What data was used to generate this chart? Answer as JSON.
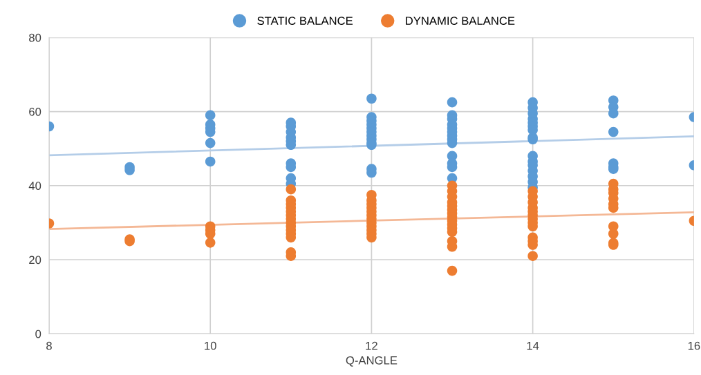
{
  "chart_data": {
    "type": "scatter",
    "xlabel": "Q-ANGLE",
    "xlim": [
      8,
      16
    ],
    "xticks": [
      8,
      10,
      12,
      14,
      16
    ],
    "ylim": [
      0,
      80
    ],
    "yticks": [
      0,
      20,
      40,
      60,
      80
    ],
    "grid": true,
    "legend": "top",
    "marker": "circle",
    "series": [
      {
        "name": "STATIC BALANCE",
        "color": "#5b9bd5",
        "x": [
          8,
          9,
          9,
          10,
          10,
          10,
          10,
          10,
          10,
          11,
          11,
          11,
          11,
          11,
          11,
          11,
          11,
          11,
          11,
          12,
          12,
          12,
          12,
          12,
          12,
          12,
          12,
          12,
          12,
          12,
          12,
          13,
          13,
          13,
          13,
          13,
          13,
          13,
          13,
          13,
          13,
          13,
          13,
          13,
          14,
          14,
          14,
          14,
          14,
          14,
          14,
          14,
          14,
          14,
          14,
          14,
          14,
          14,
          14,
          14,
          15,
          15,
          15,
          15,
          15,
          15,
          15,
          16,
          16
        ],
        "values": [
          56,
          45,
          44.2,
          59,
          56.5,
          55.5,
          54.5,
          51.5,
          46.5,
          57,
          56,
          54.5,
          53,
          52,
          51,
          46,
          45,
          42,
          40.5,
          63.5,
          58.5,
          57.5,
          56.5,
          55.5,
          54.5,
          53.5,
          52.5,
          51.5,
          51,
          44.5,
          43.5,
          62.5,
          59,
          58,
          56.5,
          55.5,
          54.5,
          53.5,
          52.5,
          51.5,
          48,
          46,
          45,
          42,
          62.5,
          61,
          59.5,
          58,
          57,
          56,
          55,
          53,
          52.5,
          48,
          46.5,
          45.5,
          44,
          42.5,
          41,
          39.5,
          63,
          61.2,
          59.5,
          54.5,
          46,
          45,
          44.5,
          58.5,
          45.5
        ]
      },
      {
        "name": "DYNAMIC BALANCE",
        "color": "#ed7d31",
        "x": [
          8,
          9,
          9,
          10,
          10,
          10,
          10,
          11,
          11,
          11,
          11,
          11,
          11,
          11,
          11,
          11,
          11,
          11,
          11,
          11,
          11,
          12,
          12,
          12,
          12,
          12,
          12,
          12,
          12,
          12,
          12,
          12,
          12,
          13,
          13,
          13,
          13,
          13,
          13,
          13,
          13,
          13,
          13,
          13,
          13,
          13,
          13,
          13,
          14,
          14,
          14,
          14,
          14,
          14,
          14,
          14,
          14,
          14,
          14,
          14,
          14,
          15,
          15,
          15,
          15,
          15,
          15,
          15,
          15,
          15,
          15,
          16
        ],
        "values": [
          29.8,
          25.5,
          25,
          29,
          28,
          27,
          24.6,
          39,
          36,
          35,
          34,
          33,
          32,
          31,
          30,
          29,
          28,
          27,
          26,
          22,
          21,
          37.5,
          36,
          35,
          34,
          33,
          32,
          31,
          30,
          29,
          28,
          27,
          26,
          40,
          38.5,
          37,
          35.5,
          34.5,
          33.5,
          32.5,
          31.5,
          30.5,
          29.5,
          28.5,
          27.5,
          25,
          23.5,
          17,
          38.5,
          37,
          35.5,
          34,
          33,
          32,
          31,
          30,
          29,
          26,
          25,
          24,
          21,
          40.5,
          39,
          38,
          36.5,
          35,
          34,
          29,
          27,
          24.5,
          24,
          30.5
        ]
      },
      {
        "type": "line",
        "marker": "none",
        "color": "#b4cde8",
        "x": [
          8,
          16
        ],
        "values": [
          48.2,
          53.3
        ]
      },
      {
        "type": "line",
        "marker": "none",
        "color": "#f4b896",
        "x": [
          8,
          16
        ],
        "values": [
          28.3,
          32.8
        ]
      }
    ]
  }
}
